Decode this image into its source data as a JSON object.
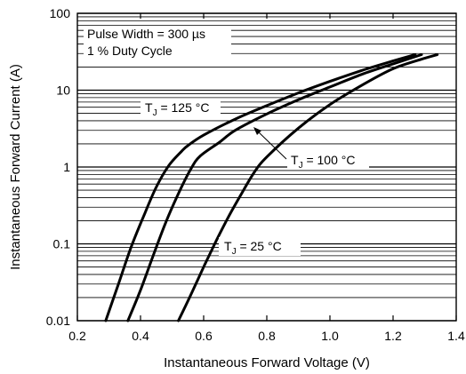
{
  "chart_data": {
    "type": "line",
    "xlabel": "Instantaneous Forward Voltage (V)",
    "ylabel": "Instantaneous Forward Current (A)",
    "xlim": [
      0.2,
      1.4
    ],
    "ylim": [
      0.01,
      100
    ],
    "yscale": "log",
    "grid": "horizontal log minor gridlines",
    "x_ticks": [
      0.2,
      0.4,
      0.6,
      0.8,
      1.0,
      1.2,
      1.4
    ],
    "x_tick_labels": [
      "0.2",
      "0.4",
      "0.6",
      "0.8",
      "1.0",
      "1.2",
      "1.4"
    ],
    "y_ticks": [
      0.01,
      0.1,
      1,
      10,
      100
    ],
    "y_tick_labels": [
      "0.01",
      "0.1",
      "1",
      "10",
      "100"
    ],
    "notes": [
      "Pulse Width = 300 µs",
      "1 % Duty Cycle"
    ],
    "series": [
      {
        "name": "T_J = 125 °C",
        "label_main": "T",
        "label_sub": "J",
        "label_rest": " = 125 °C",
        "x": [
          0.29,
          0.33,
          0.37,
          0.41,
          0.45,
          0.49,
          0.53,
          0.55,
          0.6,
          0.7,
          0.8,
          0.9,
          1.0,
          1.1,
          1.2,
          1.27
        ],
        "y": [
          0.01,
          0.03,
          0.09,
          0.23,
          0.55,
          1.05,
          1.6,
          1.9,
          2.6,
          4.2,
          6.3,
          9.2,
          13,
          18,
          24,
          29
        ]
      },
      {
        "name": "T_J = 100 °C",
        "label_main": "T",
        "label_sub": "J",
        "label_rest": " = 100 °C",
        "x": [
          0.36,
          0.4,
          0.44,
          0.48,
          0.52,
          0.56,
          0.59,
          0.65,
          0.7,
          0.8,
          0.9,
          1.0,
          1.1,
          1.2,
          1.29
        ],
        "y": [
          0.01,
          0.025,
          0.07,
          0.19,
          0.45,
          0.95,
          1.4,
          2.1,
          3.0,
          4.9,
          7.5,
          11,
          16,
          22,
          29
        ]
      },
      {
        "name": "T_J = 25 °C",
        "label_main": "T",
        "label_sub": "J",
        "label_rest": " = 25 °C",
        "x": [
          0.52,
          0.56,
          0.6,
          0.64,
          0.68,
          0.72,
          0.76,
          0.8,
          0.9,
          1.0,
          1.1,
          1.2,
          1.3,
          1.34
        ],
        "y": [
          0.01,
          0.022,
          0.05,
          0.11,
          0.23,
          0.45,
          0.85,
          1.35,
          3.2,
          6.5,
          11.5,
          19,
          26,
          29
        ]
      }
    ]
  }
}
